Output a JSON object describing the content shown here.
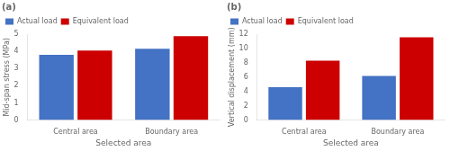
{
  "chart_data": [
    {
      "type": "bar",
      "title": "(a)",
      "categories": [
        "Central area",
        "Boundary area"
      ],
      "series": [
        {
          "name": "Actual load",
          "color": "#4472C4",
          "values": [
            3.8,
            4.15
          ]
        },
        {
          "name": "Equivalent load",
          "color": "#CC0000",
          "values": [
            4.05,
            4.88
          ]
        }
      ],
      "xlabel": "Selected area",
      "ylabel": "Mid-span stress (MPa)",
      "ylim": [
        0,
        5
      ],
      "yticks": [
        0,
        1,
        2,
        3,
        4,
        5
      ],
      "legend": "upper left",
      "grid": false
    },
    {
      "type": "bar",
      "title": "(b)",
      "categories": [
        "Central area",
        "Boundary area"
      ],
      "series": [
        {
          "name": "Actual load",
          "color": "#4472C4",
          "values": [
            4.6,
            6.15
          ]
        },
        {
          "name": "Equivalent load",
          "color": "#CC0000",
          "values": [
            8.3,
            11.55
          ]
        }
      ],
      "xlabel": "Selected area",
      "ylabel": "Vertical displacement (mm)",
      "ylim": [
        0,
        12
      ],
      "yticks": [
        0,
        2,
        4,
        6,
        8,
        10,
        12
      ],
      "legend": "upper left",
      "grid": false
    }
  ]
}
